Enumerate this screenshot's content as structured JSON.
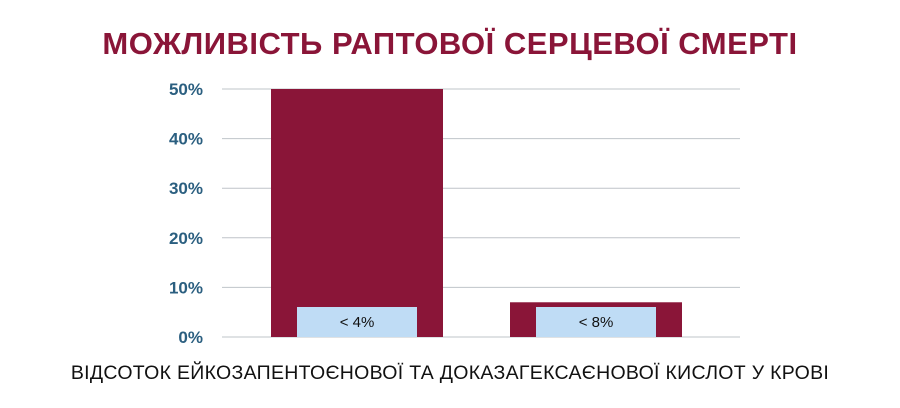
{
  "chart_data": {
    "type": "bar",
    "title": "МОЖЛИВІСТЬ РАПТОВОЇ СЕРЦЕВОЇ СМЕРТІ",
    "xlabel": "ВІДСОТОК ЕЙКОЗАПЕНТОЄНОВОЇ ТА ДОКАЗАГЕКСАЄНОВОЇ КИСЛОТ У КРОВІ",
    "ylabel": "",
    "categories": [
      "< 4%",
      "< 8%"
    ],
    "values": [
      50,
      7
    ],
    "ylim": [
      0,
      50
    ],
    "yticks": [
      "0%",
      "10%",
      "20%",
      "30%",
      "40%",
      "50%"
    ],
    "ytick_values": [
      0,
      10,
      20,
      30,
      40,
      50
    ],
    "grid": true,
    "legend": "none",
    "colors": {
      "bar": "#8a1538",
      "label_box": "#bfdcf5",
      "title": "#8a1538",
      "ticks": "#2b5f80",
      "grid": "#bfc4c9"
    }
  }
}
